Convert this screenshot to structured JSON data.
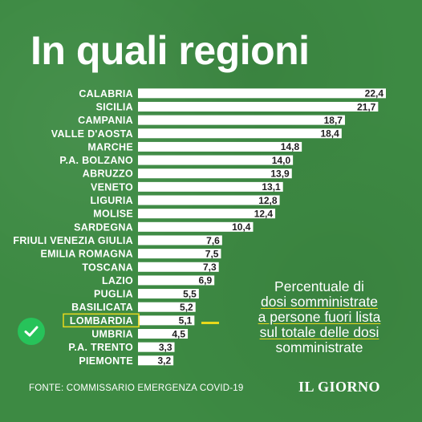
{
  "title": "In quali regioni",
  "note": {
    "lines": [
      "Percentuale di",
      "dosi somministrate",
      "a persone fuori lista",
      "sul totale delle dosi",
      "somministrate"
    ]
  },
  "source": "FONTE: COMMISSARIO EMERGENZA COVID-19",
  "logo": "IL GIORNO",
  "highlight_color": "#e8d81c",
  "check_color": "#27c35a",
  "background_color": "#3d8a43",
  "chart_data": {
    "type": "bar",
    "orientation": "horizontal",
    "categories": [
      "CALABRIA",
      "SICILIA",
      "CAMPANIA",
      "VALLE D'AOSTA",
      "MARCHE",
      "P.A. BOLZANO",
      "ABRUZZO",
      "VENETO",
      "LIGURIA",
      "MOLISE",
      "SARDEGNA",
      "FRIULI VENEZIA GIULIA",
      "EMILIA ROMAGNA",
      "TOSCANA",
      "LAZIO",
      "PUGLIA",
      "BASILICATA",
      "LOMBARDIA",
      "UMBRIA",
      "P.A. TRENTO",
      "PIEMONTE"
    ],
    "values": [
      22.4,
      21.7,
      18.7,
      18.4,
      14.8,
      14.0,
      13.9,
      13.1,
      12.8,
      12.4,
      10.4,
      7.6,
      7.5,
      7.3,
      6.9,
      5.5,
      5.2,
      5.1,
      4.5,
      3.3,
      3.2
    ],
    "value_labels": [
      "22,4",
      "21,7",
      "18,7",
      "18,4",
      "14,8",
      "14,0",
      "13,9",
      "13,1",
      "12,8",
      "12,4",
      "10,4",
      "7,6",
      "7,5",
      "7,3",
      "6,9",
      "5,5",
      "5,2",
      "5,1",
      "4,5",
      "3,3",
      "3,2"
    ],
    "highlighted_category": "LOMBARDIA",
    "bar_color": "#ffffff",
    "xlim": [
      0,
      22.4
    ],
    "grid": false,
    "legend": "none"
  }
}
